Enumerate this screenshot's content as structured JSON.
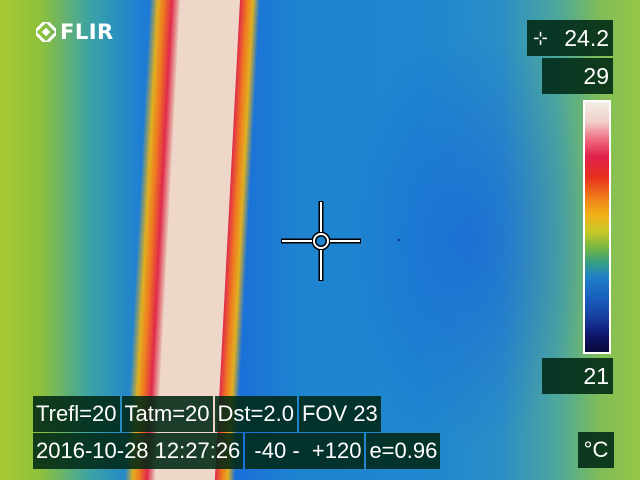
{
  "brand": {
    "logo_text": "FLIR"
  },
  "spot_meter": {
    "icon": "spot-crosshair-icon",
    "value": "24.2"
  },
  "scale": {
    "max": "29",
    "min": "21",
    "unit": "°C",
    "palette": "iron-rainbow"
  },
  "parameters": {
    "trefl": "Trefl=20",
    "tatm": "Tatm=20",
    "dst": "Dst=2.0",
    "fov": "FOV 23"
  },
  "status": {
    "datetime": "2016-10-28 12:27:26",
    "range": " -40 -  +120",
    "emissivity": "e=0.96"
  },
  "colors": {
    "overlay_bg": "#002814",
    "text": "#ffffff",
    "hot": "#eed7c9",
    "cold": "#1a70d8"
  }
}
